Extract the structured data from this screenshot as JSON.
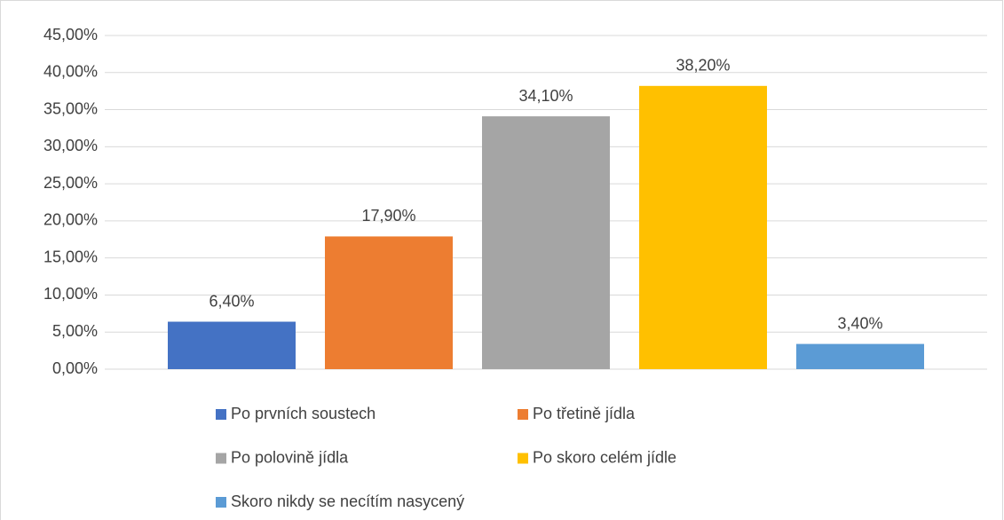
{
  "chart_data": {
    "type": "bar",
    "series": [
      {
        "name": "Po prvních soustech",
        "color": "#4472c4",
        "values": [
          6.4
        ],
        "value_labels": [
          "6,40%"
        ]
      },
      {
        "name": "Po třetině jídla",
        "color": "#ed7d31",
        "values": [
          17.9
        ],
        "value_labels": [
          "17,90%"
        ]
      },
      {
        "name": "Po polovině jídla",
        "color": "#a5a5a5",
        "values": [
          34.1
        ],
        "value_labels": [
          "34,10%"
        ]
      },
      {
        "name": "Po skoro celém jídle",
        "color": "#ffc000",
        "values": [
          38.2
        ],
        "value_labels": [
          "38,20%"
        ]
      },
      {
        "name": "Skoro nikdy se necítím nasycený",
        "color": "#5b9bd5",
        "values": [
          3.4
        ],
        "value_labels": [
          "3,40%"
        ]
      }
    ],
    "ylim": [
      0,
      45
    ],
    "yticks": [
      {
        "value": 0,
        "label": "0,00%"
      },
      {
        "value": 5,
        "label": "5,00%"
      },
      {
        "value": 10,
        "label": "10,00%"
      },
      {
        "value": 15,
        "label": "15,00%"
      },
      {
        "value": 20,
        "label": "20,00%"
      },
      {
        "value": 25,
        "label": "25,00%"
      },
      {
        "value": 30,
        "label": "30,00%"
      },
      {
        "value": 35,
        "label": "35,00%"
      },
      {
        "value": 40,
        "label": "40,00%"
      },
      {
        "value": 45,
        "label": "45,00%"
      }
    ],
    "grid": true,
    "legend": "bottom"
  }
}
